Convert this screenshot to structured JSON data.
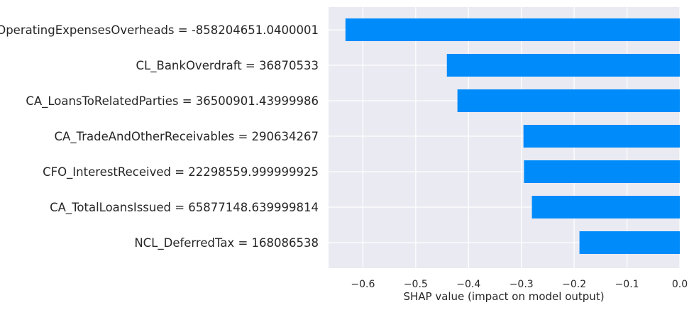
{
  "chart_data": {
    "type": "bar",
    "orientation": "horizontal",
    "title": "",
    "xlabel": "SHAP value (impact on model output)",
    "ylabel": "",
    "xlim": [
      -0.665,
      0.0
    ],
    "grid": true,
    "legend": "none",
    "bar_color": "#008bfb",
    "background_color": "#eaeaf2",
    "grid_color": "#ffffff",
    "x_ticks": [
      {
        "value": -0.6,
        "label": "−0.6"
      },
      {
        "value": -0.5,
        "label": "−0.5"
      },
      {
        "value": -0.4,
        "label": "−0.4"
      },
      {
        "value": -0.3,
        "label": "−0.3"
      },
      {
        "value": -0.2,
        "label": "−0.2"
      },
      {
        "value": -0.1,
        "label": "−0.1"
      },
      {
        "value": 0.0,
        "label": "0.0"
      }
    ],
    "categories": [
      "OperatingExpensesOverheads = -858204651.0400001",
      "CL_BankOverdraft = 36870533",
      "CA_LoansToRelatedParties = 36500901.43999986",
      "CA_TradeAndOtherReceivables = 290634267",
      "CFO_InterestReceived = 22298559.999999925",
      "CA_TotalLoansIssued = 65877148.639999814",
      "NCL_DeferredTax = 168086538"
    ],
    "values": [
      -0.633,
      -0.441,
      -0.421,
      -0.296,
      -0.295,
      -0.28,
      -0.19
    ]
  }
}
